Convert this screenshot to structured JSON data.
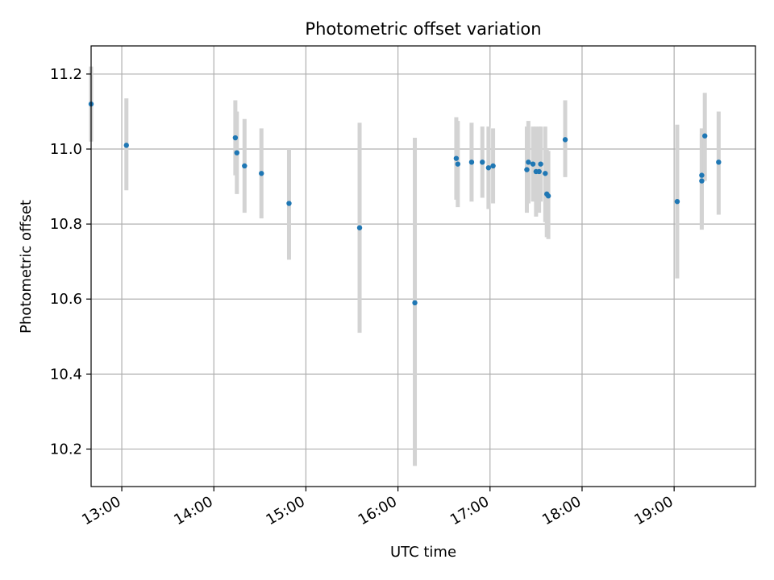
{
  "chart_data": {
    "type": "scatter",
    "title": "Photometric offset variation",
    "xlabel": "UTC time",
    "ylabel": "Photometric offset",
    "x_axis_kind": "time",
    "xlim": [
      "12:40",
      "19:53"
    ],
    "ylim": [
      10.1,
      11.275
    ],
    "xticks": [
      "13:00",
      "14:00",
      "15:00",
      "16:00",
      "17:00",
      "18:00",
      "19:00"
    ],
    "yticks": [
      10.2,
      10.4,
      10.6,
      10.8,
      11.0,
      11.2
    ],
    "grid": true,
    "colors": {
      "point": "#1f77b4",
      "errorbar": "#d3d3d3",
      "grid": "#b0b0b0",
      "axes": "#000000"
    },
    "points": [
      {
        "x": "12:40",
        "y": 11.12,
        "lo": 11.02,
        "hi": 11.22
      },
      {
        "x": "13:03",
        "y": 11.01,
        "lo": 10.89,
        "hi": 11.135
      },
      {
        "x": "14:14",
        "y": 11.03,
        "lo": 10.93,
        "hi": 11.13
      },
      {
        "x": "14:15",
        "y": 10.99,
        "lo": 10.88,
        "hi": 11.1
      },
      {
        "x": "14:20",
        "y": 10.955,
        "lo": 10.83,
        "hi": 11.08
      },
      {
        "x": "14:31",
        "y": 10.935,
        "lo": 10.815,
        "hi": 11.055
      },
      {
        "x": "14:49",
        "y": 10.855,
        "lo": 10.705,
        "hi": 11.0
      },
      {
        "x": "15:35",
        "y": 10.79,
        "lo": 10.51,
        "hi": 11.07
      },
      {
        "x": "16:11",
        "y": 10.59,
        "lo": 10.155,
        "hi": 11.03
      },
      {
        "x": "16:38",
        "y": 10.975,
        "lo": 10.865,
        "hi": 11.085
      },
      {
        "x": "16:39",
        "y": 10.96,
        "lo": 10.845,
        "hi": 11.075
      },
      {
        "x": "16:48",
        "y": 10.965,
        "lo": 10.86,
        "hi": 11.07
      },
      {
        "x": "16:55",
        "y": 10.965,
        "lo": 10.87,
        "hi": 11.06
      },
      {
        "x": "16:59",
        "y": 10.95,
        "lo": 10.84,
        "hi": 11.06
      },
      {
        "x": "17:02",
        "y": 10.955,
        "lo": 10.855,
        "hi": 11.055
      },
      {
        "x": "17:24",
        "y": 10.945,
        "lo": 10.83,
        "hi": 11.06
      },
      {
        "x": "17:25",
        "y": 10.965,
        "lo": 10.855,
        "hi": 11.075
      },
      {
        "x": "17:28",
        "y": 10.96,
        "lo": 10.86,
        "hi": 11.06
      },
      {
        "x": "17:30",
        "y": 10.94,
        "lo": 10.82,
        "hi": 11.06
      },
      {
        "x": "17:32",
        "y": 10.94,
        "lo": 10.83,
        "hi": 11.06
      },
      {
        "x": "17:33",
        "y": 10.96,
        "lo": 10.86,
        "hi": 11.06
      },
      {
        "x": "17:36",
        "y": 10.935,
        "lo": 10.805,
        "hi": 11.06
      },
      {
        "x": "17:37",
        "y": 10.88,
        "lo": 10.765,
        "hi": 11.0
      },
      {
        "x": "17:38",
        "y": 10.875,
        "lo": 10.76,
        "hi": 10.995
      },
      {
        "x": "17:49",
        "y": 11.025,
        "lo": 10.925,
        "hi": 11.13
      },
      {
        "x": "19:02",
        "y": 10.86,
        "lo": 10.655,
        "hi": 11.065
      },
      {
        "x": "19:18",
        "y": 10.93,
        "lo": 10.8,
        "hi": 11.055
      },
      {
        "x": "19:18",
        "y": 10.915,
        "lo": 10.785,
        "hi": 11.04
      },
      {
        "x": "19:20",
        "y": 11.035,
        "lo": 10.915,
        "hi": 11.15
      },
      {
        "x": "19:29",
        "y": 10.965,
        "lo": 10.825,
        "hi": 11.1
      }
    ]
  }
}
